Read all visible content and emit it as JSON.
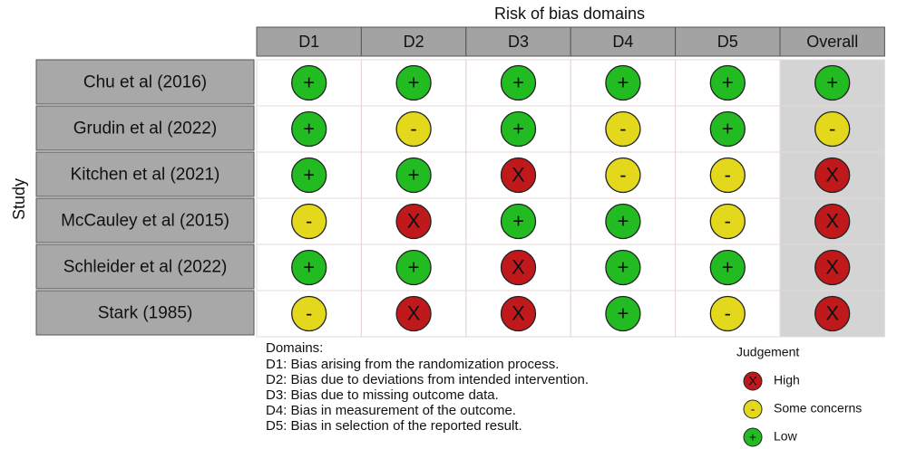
{
  "title": "Risk of bias domains",
  "y_label": "Study",
  "columns": [
    "D1",
    "D2",
    "D3",
    "D4",
    "D5",
    "Overall"
  ],
  "rows": [
    {
      "study": "Chu et al (2016)",
      "judgements": [
        "+",
        "+",
        "+",
        "+",
        "+",
        "+"
      ]
    },
    {
      "study": "Grudin et al (2022)",
      "judgements": [
        "+",
        "-",
        "+",
        "-",
        "+",
        "-"
      ]
    },
    {
      "study": "Kitchen et al (2021)",
      "judgements": [
        "+",
        "+",
        "X",
        "-",
        "-",
        "X"
      ]
    },
    {
      "study": "McCauley et al (2015)",
      "judgements": [
        "-",
        "X",
        "+",
        "+",
        "-",
        "X"
      ]
    },
    {
      "study": "Schleider et al (2022)",
      "judgements": [
        "+",
        "+",
        "X",
        "+",
        "+",
        "X"
      ]
    },
    {
      "study": "Stark (1985)",
      "judgements": [
        "-",
        "X",
        "X",
        "+",
        "-",
        "X"
      ]
    }
  ],
  "domains_title": "Domains:",
  "domains": [
    "D1: Bias arising from the randomization process.",
    "D2: Bias due to deviations from intended intervention.",
    "D3: Bias due to missing outcome data.",
    "D4: Bias in measurement of the outcome.",
    "D5: Bias in selection of the reported result."
  ],
  "legend": {
    "title": "Judgement",
    "items": [
      {
        "symbol": "X",
        "label": "High",
        "color": "#c0191c"
      },
      {
        "symbol": "-",
        "label": "Some concerns",
        "color": "#e3d81c"
      },
      {
        "symbol": "+",
        "label": "Low",
        "color": "#22bb22"
      }
    ]
  }
}
